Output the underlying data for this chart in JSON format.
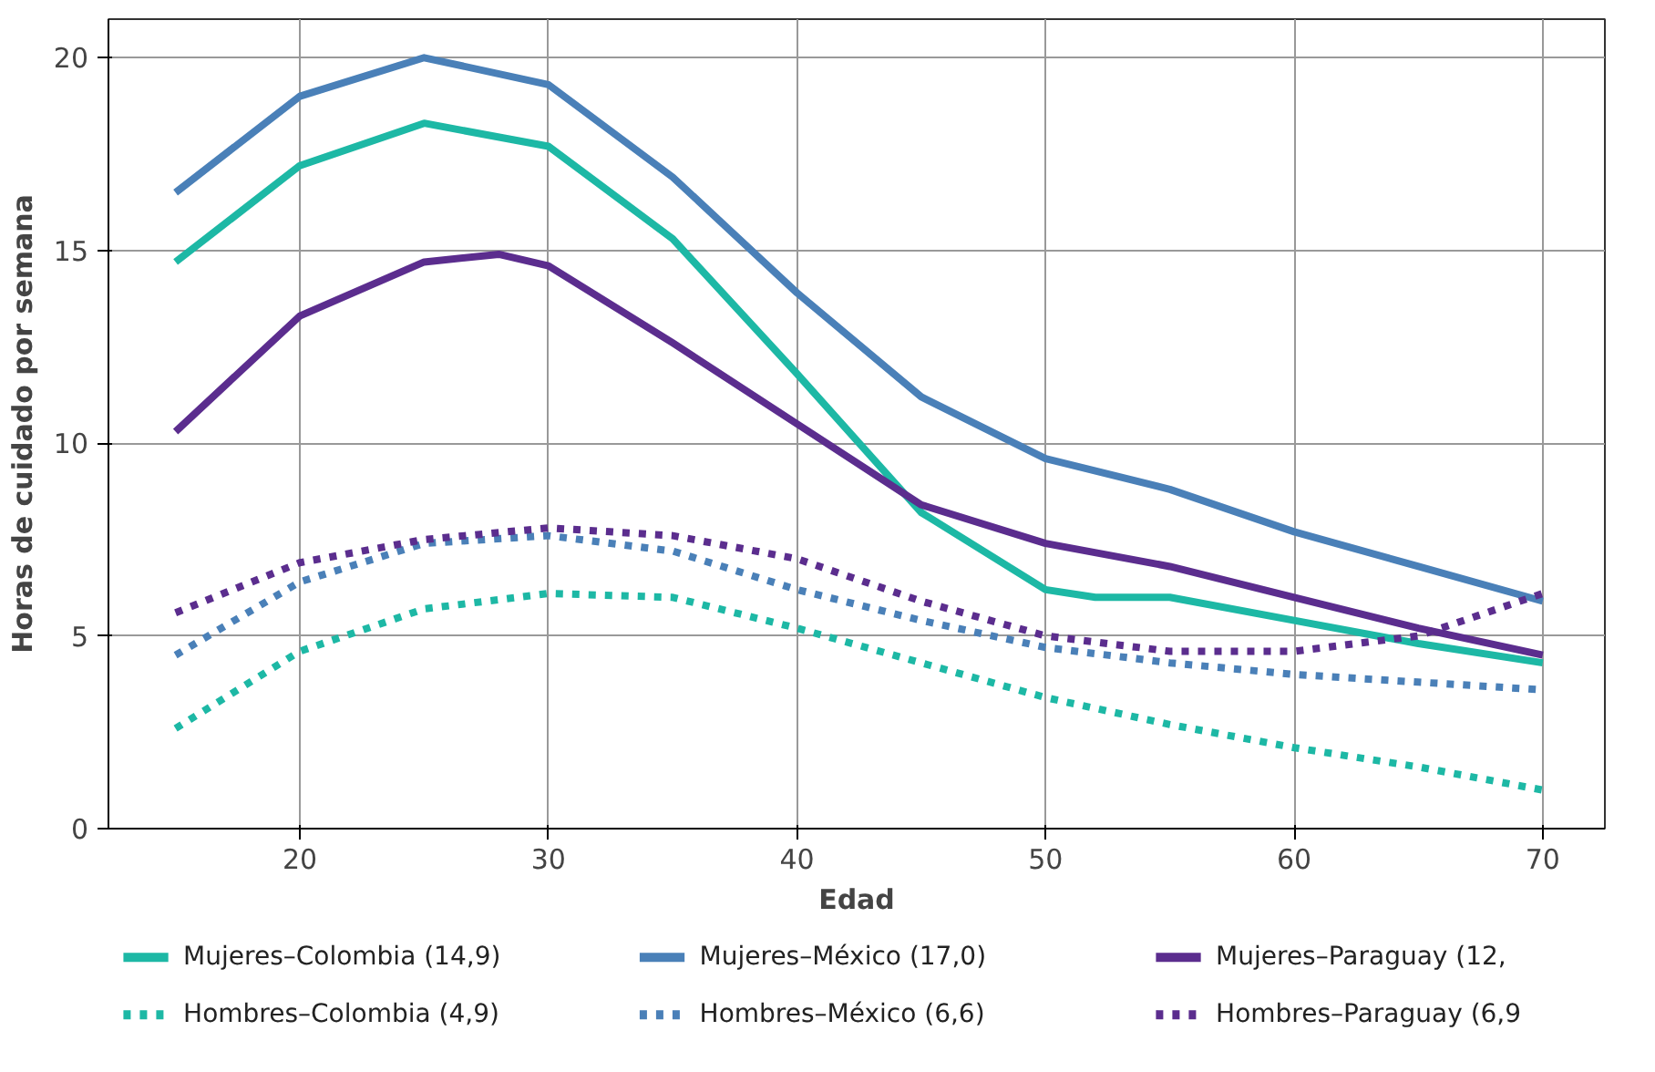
{
  "chart_data": {
    "type": "line",
    "xlabel": "Edad",
    "ylabel": "Horas de cuidado por semana",
    "xlim": [
      12.3,
      72.5
    ],
    "xticks": [
      20,
      30,
      40,
      50,
      60,
      70
    ],
    "ylim": [
      0,
      21
    ],
    "yticks": [
      0,
      5,
      10,
      15,
      20
    ],
    "grid": true,
    "legend": "bottom",
    "marker": "none",
    "series": [
      {
        "name": "Mujeres–Colombia (14,9)",
        "color": "#1db8a5",
        "line_style": "solid",
        "x": [
          15,
          20,
          25,
          30,
          35,
          40,
          45,
          50,
          52,
          55,
          60,
          65,
          70
        ],
        "values": [
          14.7,
          17.2,
          18.3,
          17.7,
          15.3,
          11.8,
          8.2,
          6.2,
          6.0,
          6.0,
          5.4,
          4.8,
          4.3
        ]
      },
      {
        "name": "Mujeres–México (17,0)",
        "color": "#4a80b8",
        "line_style": "solid",
        "x": [
          15,
          20,
          25,
          30,
          35,
          40,
          45,
          50,
          55,
          60,
          65,
          70
        ],
        "values": [
          16.5,
          19.0,
          20.0,
          19.3,
          16.9,
          13.9,
          11.2,
          9.6,
          8.8,
          7.7,
          6.8,
          5.9
        ]
      },
      {
        "name": "Mujeres–Paraguay (12,",
        "color": "#5b2d8e",
        "line_style": "solid",
        "x": [
          15,
          20,
          25,
          28,
          30,
          35,
          40,
          45,
          50,
          55,
          60,
          65,
          70
        ],
        "values": [
          10.3,
          13.3,
          14.7,
          14.9,
          14.6,
          12.6,
          10.5,
          8.4,
          7.4,
          6.8,
          6.0,
          5.2,
          4.5
        ]
      },
      {
        "name": "Hombres–Colombia (4,9)",
        "color": "#1db8a5",
        "line_style": "dotted",
        "x": [
          15,
          20,
          25,
          30,
          35,
          40,
          45,
          50,
          55,
          60,
          65,
          70
        ],
        "values": [
          2.6,
          4.6,
          5.7,
          6.1,
          6.0,
          5.2,
          4.3,
          3.4,
          2.7,
          2.1,
          1.6,
          1.0
        ]
      },
      {
        "name": "Hombres–México (6,6)",
        "color": "#4a80b8",
        "line_style": "dotted",
        "x": [
          15,
          20,
          25,
          30,
          35,
          40,
          45,
          50,
          55,
          60,
          65,
          70
        ],
        "values": [
          4.5,
          6.4,
          7.4,
          7.6,
          7.2,
          6.2,
          5.4,
          4.7,
          4.3,
          4.0,
          3.8,
          3.6
        ]
      },
      {
        "name": "Hombres–Paraguay (6,9",
        "color": "#5b2d8e",
        "line_style": "dotted",
        "x": [
          15,
          20,
          25,
          30,
          35,
          40,
          45,
          50,
          55,
          60,
          65,
          70
        ],
        "values": [
          5.6,
          6.9,
          7.5,
          7.8,
          7.6,
          7.0,
          5.9,
          5.0,
          4.6,
          4.6,
          5.0,
          6.1
        ]
      }
    ]
  }
}
